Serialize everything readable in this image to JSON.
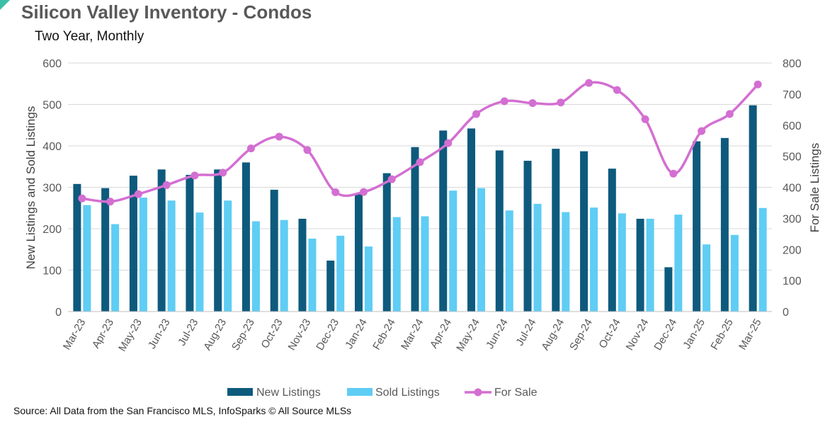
{
  "colors": {
    "new_listings": "#0e5a7d",
    "sold_listings": "#5fcdf4",
    "for_sale": "#d36fd2",
    "grid": "#d9d9d9",
    "axis_text": "#595959"
  },
  "footer": {
    "source": "Source: All Data from the San Francisco MLS, InfoSparks © All Source MLSs"
  },
  "chart_data": {
    "type": "bar",
    "title": "Silicon Valley Inventory - Condos",
    "subtitle": "Two Year, Monthly",
    "ylabel": "New Listings and Sold Listings",
    "y2label": "For Sale Listings",
    "ylim": [
      0,
      600
    ],
    "y2lim": [
      0,
      800
    ],
    "yticks": [
      0,
      100,
      200,
      300,
      400,
      500,
      600
    ],
    "y2ticks": [
      0,
      100,
      200,
      300,
      400,
      500,
      600,
      700,
      800
    ],
    "grid": true,
    "legend_position": "bottom",
    "categories": [
      "Mar-23",
      "Apr-23",
      "May-23",
      "Jun-23",
      "Jul-23",
      "Aug-23",
      "Sep-23",
      "Oct-23",
      "Nov-23",
      "Dec-23",
      "Jan-24",
      "Feb-24",
      "Mar-24",
      "Apr-24",
      "May-24",
      "Jun-24",
      "Jul-24",
      "Aug-24",
      "Sep-24",
      "Oct-24",
      "Nov-24",
      "Dec-24",
      "Jan-25",
      "Feb-25",
      "Mar-25"
    ],
    "series": [
      {
        "name": "New Listings",
        "type": "bar",
        "axis": "left",
        "values": [
          308,
          298,
          328,
          343,
          330,
          343,
          360,
          294,
          224,
          123,
          283,
          334,
          397,
          437,
          442,
          389,
          364,
          393,
          387,
          345,
          224,
          107,
          411,
          419,
          498
        ]
      },
      {
        "name": "Sold Listings",
        "type": "bar",
        "axis": "left",
        "values": [
          257,
          211,
          275,
          268,
          239,
          268,
          218,
          221,
          176,
          183,
          157,
          228,
          230,
          292,
          298,
          244,
          260,
          240,
          251,
          237,
          224,
          234,
          162,
          185,
          250
        ]
      },
      {
        "name": "For Sale",
        "type": "line",
        "axis": "right",
        "values": [
          364,
          354,
          378,
          407,
          438,
          447,
          525,
          563,
          520,
          384,
          385,
          426,
          481,
          542,
          636,
          677,
          671,
          673,
          736,
          713,
          619,
          444,
          581,
          636,
          731
        ]
      }
    ]
  }
}
